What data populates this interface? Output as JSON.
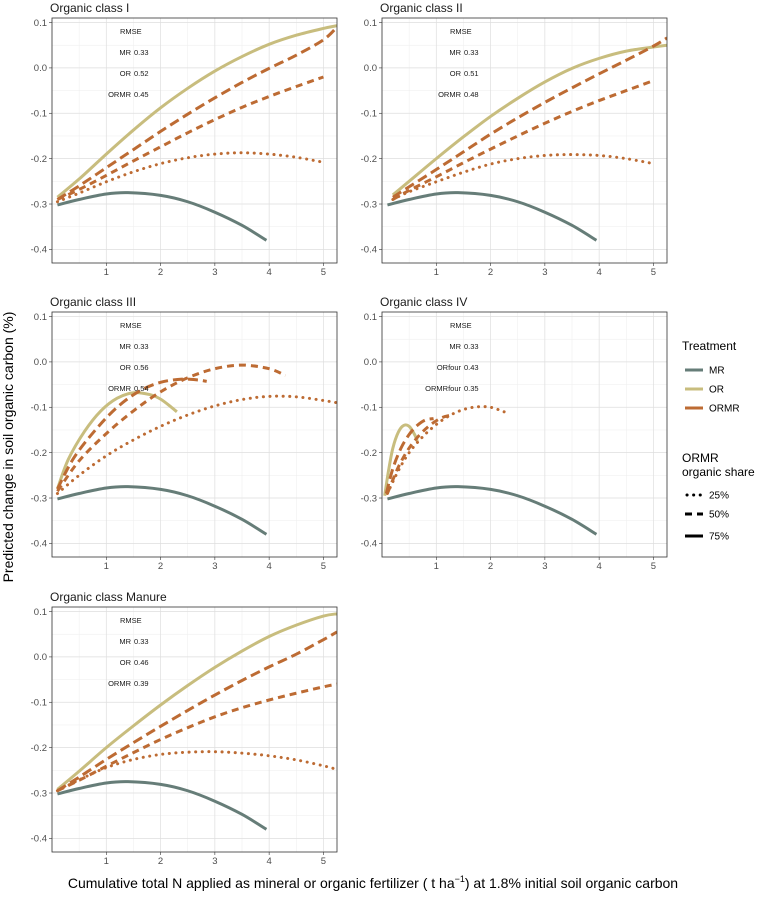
{
  "chart_data": {
    "type": "line",
    "xlabel": "Cumulative total N applied as mineral or organic fertilizer",
    "xlabel_unit_pre": " ( t ha",
    "xlabel_unit_sup": "−1",
    "xlabel_unit_post": ") at 1.8% initial soil organic carbon",
    "ylabel": "Predicted change in soil organic carbon (%)",
    "xlim": [
      0,
      5.25
    ],
    "ylim": [
      -0.43,
      0.11
    ],
    "x_ticks": [
      1,
      2,
      3,
      4,
      5
    ],
    "y_ticks": [
      -0.4,
      -0.3,
      -0.2,
      -0.1,
      0.0,
      0.1
    ],
    "y_tick_labels": [
      "-0.4",
      "-0.3",
      "-0.2",
      "-0.1",
      "0.0",
      "0.1"
    ],
    "colors": {
      "MR": "#667d78",
      "OR": "#c8bd7e",
      "ORMR": "#bd6b33"
    },
    "legend": {
      "treatment_title": "Treatment",
      "treatment_items": [
        "MR",
        "OR",
        "ORMR"
      ],
      "share_title_line1": "ORMR",
      "share_title_line2": "organic share",
      "share_items": [
        "25%",
        "50%",
        "75%"
      ]
    },
    "panels": [
      {
        "title": "Organic class I",
        "rmse": {
          "header": "RMSE",
          "rows": [
            [
              "MR",
              "0.33"
            ],
            [
              "OR",
              "0.52"
            ],
            [
              "ORMR",
              "0.45"
            ]
          ]
        },
        "series": [
          {
            "name": "MR",
            "style": "solid",
            "x": [
              0.1,
              0.5,
              1.0,
              1.4,
              2.0,
              2.5,
              3.0,
              3.5,
              3.95
            ],
            "y": [
              -0.302,
              -0.29,
              -0.278,
              -0.275,
              -0.281,
              -0.295,
              -0.318,
              -0.347,
              -0.38
            ]
          },
          {
            "name": "OR",
            "style": "solid",
            "x": [
              0.1,
              0.5,
              1.0,
              1.5,
              2.0,
              2.5,
              3.0,
              3.5,
              4.0,
              4.5,
              5.0,
              5.25
            ],
            "y": [
              -0.285,
              -0.245,
              -0.19,
              -0.137,
              -0.088,
              -0.045,
              -0.007,
              0.025,
              0.052,
              0.072,
              0.087,
              0.093
            ]
          },
          {
            "name": "ORMR 75%",
            "style": "dash",
            "x": [
              0.1,
              0.5,
              1.0,
              1.5,
              2.0,
              2.5,
              3.0,
              3.5,
              4.0,
              4.5,
              5.0,
              5.25
            ],
            "y": [
              -0.29,
              -0.26,
              -0.22,
              -0.18,
              -0.14,
              -0.102,
              -0.066,
              -0.032,
              -0.001,
              0.028,
              0.062,
              0.09
            ]
          },
          {
            "name": "ORMR 50%",
            "style": "shortdash",
            "x": [
              0.1,
              0.5,
              1.0,
              1.5,
              2.0,
              2.5,
              3.0,
              3.5,
              4.0,
              4.5,
              5.0
            ],
            "y": [
              -0.29,
              -0.268,
              -0.237,
              -0.205,
              -0.174,
              -0.143,
              -0.114,
              -0.087,
              -0.063,
              -0.041,
              -0.02
            ]
          },
          {
            "name": "ORMR 25%",
            "style": "dot",
            "x": [
              0.1,
              0.5,
              1.0,
              1.5,
              2.0,
              2.5,
              3.0,
              3.5,
              4.0,
              4.5,
              5.0
            ],
            "y": [
              -0.295,
              -0.276,
              -0.251,
              -0.229,
              -0.211,
              -0.198,
              -0.19,
              -0.187,
              -0.19,
              -0.197,
              -0.208
            ]
          }
        ]
      },
      {
        "title": "Organic class II",
        "rmse": {
          "header": "RMSE",
          "rows": [
            [
              "MR",
              "0.33"
            ],
            [
              "OR",
              "0.51"
            ],
            [
              "ORMR",
              "0.48"
            ]
          ]
        },
        "series": [
          {
            "name": "MR",
            "style": "solid",
            "x": [
              0.1,
              0.5,
              1.0,
              1.4,
              2.0,
              2.5,
              3.0,
              3.5,
              3.95
            ],
            "y": [
              -0.302,
              -0.29,
              -0.278,
              -0.275,
              -0.281,
              -0.295,
              -0.318,
              -0.347,
              -0.38
            ]
          },
          {
            "name": "OR",
            "style": "solid",
            "x": [
              0.2,
              0.5,
              1.0,
              1.5,
              2.0,
              2.5,
              3.0,
              3.5,
              4.0,
              4.5,
              5.0,
              5.25
            ],
            "y": [
              -0.28,
              -0.25,
              -0.2,
              -0.152,
              -0.107,
              -0.067,
              -0.031,
              -0.001,
              0.021,
              0.037,
              0.046,
              0.05
            ]
          },
          {
            "name": "ORMR 75%",
            "style": "dash",
            "x": [
              0.2,
              0.5,
              1.0,
              1.5,
              2.0,
              2.5,
              3.0,
              3.5,
              4.0,
              4.5,
              5.0,
              5.25
            ],
            "y": [
              -0.285,
              -0.262,
              -0.224,
              -0.185,
              -0.146,
              -0.11,
              -0.076,
              -0.044,
              -0.013,
              0.017,
              0.048,
              0.066
            ]
          },
          {
            "name": "ORMR 50%",
            "style": "shortdash",
            "x": [
              0.2,
              0.5,
              1.0,
              1.5,
              2.0,
              2.5,
              3.0,
              3.5,
              4.0,
              4.5,
              5.0
            ],
            "y": [
              -0.29,
              -0.27,
              -0.24,
              -0.209,
              -0.179,
              -0.15,
              -0.122,
              -0.096,
              -0.072,
              -0.05,
              -0.028
            ]
          },
          {
            "name": "ORMR 25%",
            "style": "dot",
            "x": [
              0.2,
              0.5,
              1.0,
              1.5,
              2.0,
              2.5,
              3.0,
              3.5,
              4.0,
              4.5,
              5.0
            ],
            "y": [
              -0.29,
              -0.273,
              -0.251,
              -0.23,
              -0.212,
              -0.2,
              -0.193,
              -0.191,
              -0.193,
              -0.2,
              -0.211
            ]
          }
        ]
      },
      {
        "title": "Organic class III",
        "rmse": {
          "header": "RMSE",
          "rows": [
            [
              "MR",
              "0.33"
            ],
            [
              "OR",
              "0.56"
            ],
            [
              "ORMR",
              "0.54"
            ]
          ]
        },
        "series": [
          {
            "name": "MR",
            "style": "solid",
            "x": [
              0.1,
              0.5,
              1.0,
              1.4,
              2.0,
              2.5,
              3.0,
              3.5,
              3.95
            ],
            "y": [
              -0.302,
              -0.29,
              -0.278,
              -0.275,
              -0.281,
              -0.295,
              -0.318,
              -0.347,
              -0.38
            ]
          },
          {
            "name": "OR",
            "style": "solid",
            "x": [
              0.1,
              0.3,
              0.6,
              0.9,
              1.2,
              1.5,
              1.8,
              2.0,
              2.2,
              2.3
            ],
            "y": [
              -0.28,
              -0.215,
              -0.153,
              -0.108,
              -0.08,
              -0.068,
              -0.072,
              -0.082,
              -0.1,
              -0.11
            ]
          },
          {
            "name": "ORMR 75%",
            "style": "dash",
            "x": [
              0.1,
              0.4,
              0.8,
              1.2,
              1.6,
              2.0,
              2.4,
              2.7,
              2.85
            ],
            "y": [
              -0.28,
              -0.212,
              -0.15,
              -0.1,
              -0.065,
              -0.045,
              -0.038,
              -0.04,
              -0.043
            ]
          },
          {
            "name": "ORMR 50%",
            "style": "shortdash",
            "x": [
              0.1,
              0.5,
              1.0,
              1.5,
              2.0,
              2.5,
              3.0,
              3.5,
              4.0,
              4.3
            ],
            "y": [
              -0.285,
              -0.218,
              -0.158,
              -0.108,
              -0.066,
              -0.035,
              -0.015,
              -0.007,
              -0.015,
              -0.03
            ]
          },
          {
            "name": "ORMR 25%",
            "style": "dot",
            "x": [
              0.1,
              0.5,
              1.0,
              1.5,
              2.0,
              2.5,
              3.0,
              3.5,
              4.0,
              4.5,
              5.0,
              5.25
            ],
            "y": [
              -0.29,
              -0.25,
              -0.207,
              -0.172,
              -0.142,
              -0.117,
              -0.097,
              -0.083,
              -0.076,
              -0.077,
              -0.085,
              -0.09
            ]
          }
        ]
      },
      {
        "title": "Organic class IV",
        "rmse": {
          "header": "RMSE",
          "rows": [
            [
              "MR",
              "0.33"
            ],
            [
              "ORfour",
              "0.43"
            ],
            [
              "ORMRfour",
              "0.35"
            ]
          ]
        },
        "series": [
          {
            "name": "MR",
            "style": "solid",
            "x": [
              0.1,
              0.5,
              1.0,
              1.4,
              2.0,
              2.5,
              3.0,
              3.5,
              3.95
            ],
            "y": [
              -0.302,
              -0.29,
              -0.278,
              -0.275,
              -0.281,
              -0.295,
              -0.318,
              -0.347,
              -0.38
            ]
          },
          {
            "name": "OR",
            "style": "solid",
            "x": [
              0.05,
              0.12,
              0.2,
              0.3,
              0.4,
              0.5,
              0.6,
              0.65
            ],
            "y": [
              -0.295,
              -0.24,
              -0.19,
              -0.155,
              -0.14,
              -0.142,
              -0.16,
              -0.175
            ]
          },
          {
            "name": "ORMR 75%",
            "style": "dash",
            "x": [
              0.08,
              0.2,
              0.35,
              0.5,
              0.65,
              0.8,
              0.95
            ],
            "y": [
              -0.29,
              -0.235,
              -0.19,
              -0.16,
              -0.14,
              -0.128,
              -0.125
            ]
          },
          {
            "name": "ORMR 50%",
            "style": "shortdash",
            "x": [
              0.1,
              0.3,
              0.5,
              0.7,
              0.9,
              1.1,
              1.25
            ],
            "y": [
              -0.29,
              -0.232,
              -0.19,
              -0.16,
              -0.138,
              -0.123,
              -0.118
            ]
          },
          {
            "name": "ORMR 25%",
            "style": "dot",
            "x": [
              0.1,
              0.3,
              0.5,
              0.75,
              1.0,
              1.25,
              1.5,
              1.75,
              2.0,
              2.25
            ],
            "y": [
              -0.29,
              -0.24,
              -0.2,
              -0.165,
              -0.138,
              -0.118,
              -0.105,
              -0.099,
              -0.1,
              -0.11
            ]
          }
        ]
      },
      {
        "title": "Organic class Manure",
        "rmse": {
          "header": "RMSE",
          "rows": [
            [
              "MR",
              "0.33"
            ],
            [
              "OR",
              "0.46"
            ],
            [
              "ORMR",
              "0.39"
            ]
          ]
        },
        "series": [
          {
            "name": "MR",
            "style": "solid",
            "x": [
              0.1,
              0.5,
              1.0,
              1.4,
              2.0,
              2.5,
              3.0,
              3.5,
              3.95
            ],
            "y": [
              -0.302,
              -0.29,
              -0.278,
              -0.275,
              -0.281,
              -0.295,
              -0.318,
              -0.347,
              -0.38
            ]
          },
          {
            "name": "OR",
            "style": "solid",
            "x": [
              0.1,
              0.5,
              1.0,
              1.5,
              2.0,
              2.5,
              3.0,
              3.5,
              4.0,
              4.5,
              5.0,
              5.25
            ],
            "y": [
              -0.292,
              -0.252,
              -0.2,
              -0.152,
              -0.106,
              -0.063,
              -0.023,
              0.013,
              0.045,
              0.07,
              0.09,
              0.095
            ]
          },
          {
            "name": "ORMR 75%",
            "style": "dash",
            "x": [
              0.1,
              0.5,
              1.0,
              1.5,
              2.0,
              2.5,
              3.0,
              3.5,
              4.0,
              4.5,
              5.0,
              5.25
            ],
            "y": [
              -0.295,
              -0.265,
              -0.226,
              -0.189,
              -0.153,
              -0.118,
              -0.084,
              -0.052,
              -0.022,
              0.006,
              0.038,
              0.055
            ]
          },
          {
            "name": "ORMR 50%",
            "style": "shortdash",
            "x": [
              0.1,
              0.5,
              1.0,
              1.5,
              2.0,
              2.5,
              3.0,
              3.5,
              4.0,
              4.5,
              5.0,
              5.25
            ],
            "y": [
              -0.295,
              -0.272,
              -0.241,
              -0.211,
              -0.182,
              -0.156,
              -0.132,
              -0.112,
              -0.095,
              -0.08,
              -0.066,
              -0.06
            ]
          },
          {
            "name": "ORMR 25%",
            "style": "dot",
            "x": [
              0.1,
              0.5,
              1.0,
              1.5,
              2.0,
              2.5,
              3.0,
              3.5,
              4.0,
              4.5,
              5.0,
              5.25
            ],
            "y": [
              -0.295,
              -0.271,
              -0.244,
              -0.226,
              -0.215,
              -0.21,
              -0.209,
              -0.212,
              -0.218,
              -0.227,
              -0.24,
              -0.248
            ]
          }
        ]
      }
    ]
  }
}
